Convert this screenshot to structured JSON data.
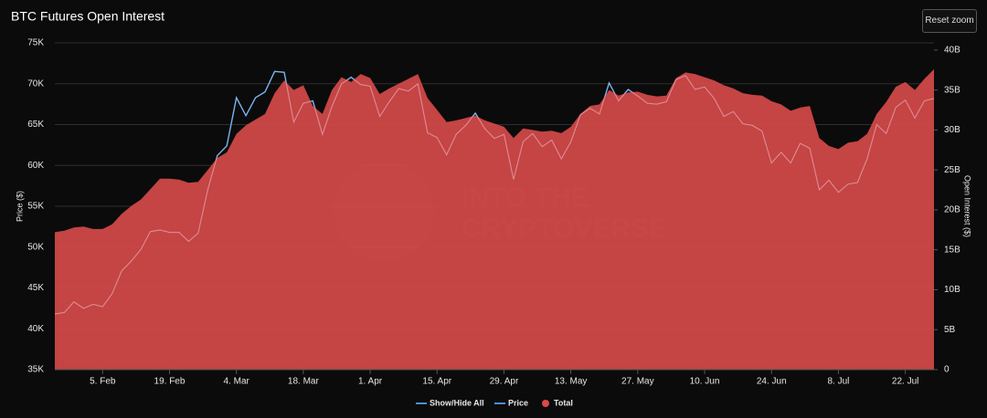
{
  "chart_data": {
    "type": "area-line",
    "title": "BTC Futures Open Interest",
    "y_label": "Price ($)",
    "y2_label": "Open Interest ($)",
    "reset_button": "Reset zoom",
    "legend_toggle": "Show/Hide All",
    "watermark": [
      "INTO THE",
      "CRYPTOVERSE"
    ],
    "categories": [
      null,
      null,
      null,
      null,
      null,
      "5. Feb",
      null,
      null,
      null,
      null,
      null,
      null,
      "19. Feb",
      null,
      null,
      null,
      null,
      null,
      null,
      "4. Mar",
      null,
      null,
      null,
      null,
      null,
      null,
      "18. Mar",
      null,
      null,
      null,
      null,
      null,
      null,
      "1. Apr",
      null,
      null,
      null,
      null,
      null,
      null,
      "15. Apr",
      null,
      null,
      null,
      null,
      null,
      null,
      "29. Apr",
      null,
      null,
      null,
      null,
      null,
      null,
      "13. May",
      null,
      null,
      null,
      null,
      null,
      null,
      "27. May",
      null,
      null,
      null,
      null,
      null,
      null,
      "10. Jun",
      null,
      null,
      null,
      null,
      null,
      null,
      "24. Jun",
      null,
      null,
      null,
      null,
      null,
      null,
      "8. Jul",
      null,
      null,
      null,
      null,
      null,
      null,
      "22. Jul",
      null,
      null,
      null
    ],
    "series": [
      {
        "name": "Price",
        "color": "#4a8fd6",
        "axis": "y",
        "values": [
          41800,
          42000,
          43300,
          42500,
          43000,
          42700,
          44300,
          47100,
          48300,
          49700,
          51900,
          52100,
          51800,
          51800,
          50700,
          51700,
          57000,
          61200,
          62400,
          68300,
          66100,
          68300,
          69000,
          71500,
          71400,
          65300,
          67600,
          67900,
          63800,
          67200,
          70000,
          70800,
          69900,
          69700,
          66000,
          67800,
          69400,
          69100,
          70000,
          64000,
          63400,
          61300,
          63800,
          64900,
          66400,
          64500,
          63300,
          63800,
          58300,
          62900,
          63900,
          62300,
          63100,
          60800,
          62900,
          66200,
          67000,
          66300,
          70100,
          67900,
          69300,
          68500,
          67600,
          67500,
          67800,
          70500,
          71000,
          69300,
          69600,
          68200,
          66000,
          66600,
          65100,
          64900,
          64200,
          60300,
          61600,
          60300,
          62700,
          62100,
          57000,
          58200,
          56700,
          57700,
          57900,
          60800,
          65000,
          63900,
          67100,
          68000,
          65800,
          67900,
          68200
        ]
      },
      {
        "name": "Total",
        "color": "#d94a4a",
        "axis": "y2",
        "values": [
          17200000000.0,
          17400000000.0,
          17800000000.0,
          17900000000.0,
          17600000000.0,
          17600000000.0,
          18200000000.0,
          19500000000.0,
          20500000000.0,
          21300000000.0,
          22600000000.0,
          23900000000.0,
          23900000000.0,
          23800000000.0,
          23400000000.0,
          23500000000.0,
          25000000000.0,
          26500000000.0,
          27200000000.0,
          29500000000.0,
          30600000000.0,
          31300000000.0,
          32000000000.0,
          34600000000.0,
          36200000000.0,
          35000000000.0,
          35600000000.0,
          33000000000.0,
          32000000000.0,
          35000000000.0,
          36600000000.0,
          36000000000.0,
          37000000000.0,
          36500000000.0,
          34500000000.0,
          35200000000.0,
          35800000000.0,
          36400000000.0,
          37000000000.0,
          34000000000.0,
          32500000000.0,
          31000000000.0,
          31200000000.0,
          31500000000.0,
          31800000000.0,
          31200000000.0,
          30800000000.0,
          30400000000.0,
          29000000000.0,
          30200000000.0,
          30000000000.0,
          29800000000.0,
          29900000000.0,
          29600000000.0,
          30400000000.0,
          32000000000.0,
          33000000000.0,
          33200000000.0,
          35000000000.0,
          34300000000.0,
          34700000000.0,
          34800000000.0,
          34400000000.0,
          34200000000.0,
          34300000000.0,
          36500000000.0,
          37200000000.0,
          37000000000.0,
          36600000000.0,
          36200000000.0,
          35600000000.0,
          35200000000.0,
          34600000000.0,
          34400000000.0,
          34300000000.0,
          33600000000.0,
          33200000000.0,
          32400000000.0,
          32800000000.0,
          33000000000.0,
          29000000000.0,
          28000000000.0,
          27600000000.0,
          28400000000.0,
          28600000000.0,
          29500000000.0,
          32000000000.0,
          33500000000.0,
          35400000000.0,
          36000000000.0,
          35000000000.0,
          36400000000.0,
          37600000000.0
        ]
      }
    ],
    "ylim": [
      35000,
      75000
    ],
    "yticks": [
      {
        "value": 35000,
        "label": "35K"
      },
      {
        "value": 40000,
        "label": "40K"
      },
      {
        "value": 45000,
        "label": "45K"
      },
      {
        "value": 50000,
        "label": "50K"
      },
      {
        "value": 55000,
        "label": "55K"
      },
      {
        "value": 60000,
        "label": "60K"
      },
      {
        "value": 65000,
        "label": "65K"
      },
      {
        "value": 70000,
        "label": "70K"
      },
      {
        "value": 75000,
        "label": "75K"
      }
    ],
    "y2lim": [
      0,
      40900000000.0
    ],
    "y2ticks": [
      0,
      {
        "value": 5000000000.0,
        "label": "5B"
      },
      {
        "value": 10000000000.0,
        "label": "10B"
      },
      {
        "value": 15000000000.0,
        "label": "15B"
      },
      {
        "value": 20000000000.0,
        "label": "20B"
      },
      {
        "value": 25000000000.0,
        "label": "25B"
      },
      {
        "value": 30000000000.0,
        "label": "30B"
      },
      {
        "value": 35000000000.0,
        "label": "35B"
      },
      {
        "value": 40000000000.0,
        "label": "40B"
      }
    ],
    "grid": true,
    "legend": "bottom"
  }
}
